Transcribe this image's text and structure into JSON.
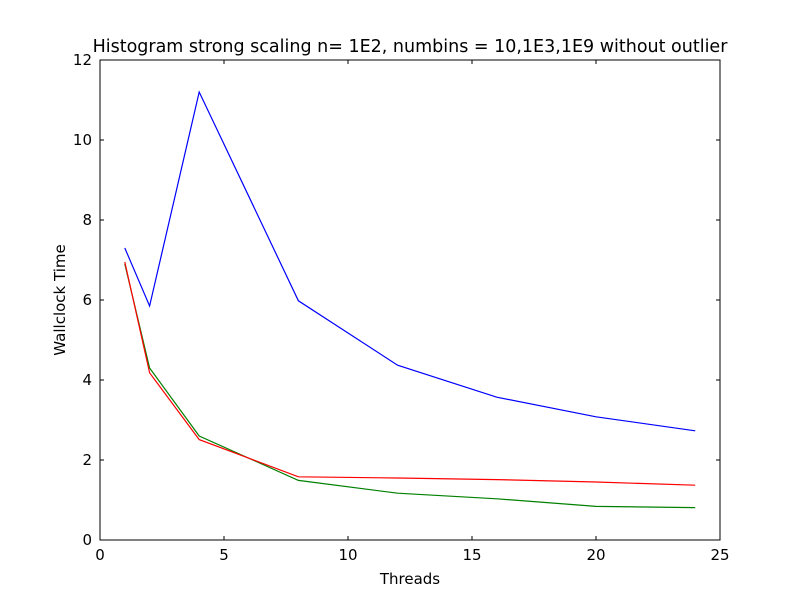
{
  "chart_data": {
    "type": "line",
    "title": "Histogram strong scaling n= 1E2, numbins = 10,1E3,1E9 without outlier",
    "xlabel": "Threads",
    "ylabel": "Wallclock Time",
    "xlim": [
      0,
      25
    ],
    "ylim": [
      0,
      12
    ],
    "xticks": [
      0,
      5,
      10,
      15,
      20,
      25
    ],
    "yticks": [
      0,
      2,
      4,
      6,
      8,
      10,
      12
    ],
    "grid": false,
    "legend": "none",
    "x": [
      1,
      2,
      4,
      8,
      12,
      16,
      20,
      24
    ],
    "series": [
      {
        "color": "#0000ff",
        "values": [
          7.3,
          5.85,
          11.2,
          5.98,
          4.37,
          3.57,
          3.08,
          2.73
        ]
      },
      {
        "color": "#008000",
        "values": [
          6.9,
          4.3,
          2.6,
          1.49,
          1.17,
          1.03,
          0.84,
          0.81
        ]
      },
      {
        "color": "#ff0000",
        "values": [
          6.95,
          4.18,
          2.51,
          1.58,
          1.55,
          1.51,
          1.45,
          1.37
        ]
      }
    ]
  }
}
